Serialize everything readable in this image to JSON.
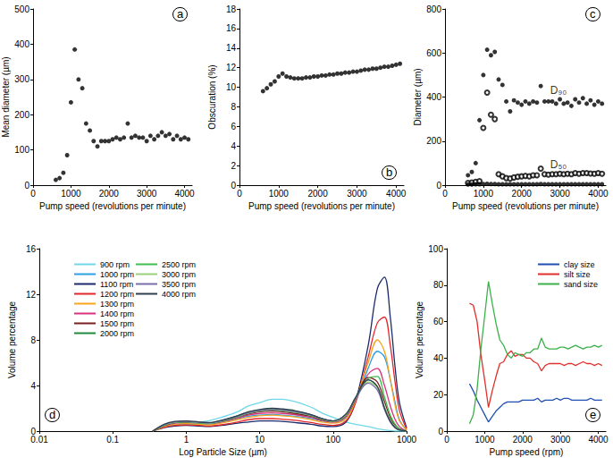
{
  "chart_data": [
    {
      "type": "scatter",
      "title": "a",
      "xlabel": "Pump speed (revolutions per minute)",
      "ylabel": "Mean diameter (µm)",
      "x": [
        600,
        700,
        800,
        900,
        1000,
        1100,
        1200,
        1300,
        1400,
        1500,
        1600,
        1700,
        1800,
        1900,
        2000,
        2100,
        2200,
        2300,
        2400,
        2500,
        2600,
        2700,
        2800,
        2900,
        3000,
        3100,
        3200,
        3300,
        3400,
        3500,
        3600,
        3700,
        3800,
        3900,
        4000,
        4100
      ],
      "series": [
        {
          "color": "#000000",
          "marker": "circle",
          "values": [
            15,
            20,
            35,
            85,
            235,
            385,
            300,
            275,
            175,
            155,
            125,
            110,
            125,
            125,
            125,
            130,
            135,
            130,
            135,
            175,
            135,
            140,
            135,
            135,
            125,
            140,
            130,
            140,
            150,
            140,
            145,
            130,
            140,
            130,
            135,
            130
          ]
        }
      ],
      "xlim": [
        0,
        4200
      ],
      "xticks": [
        0,
        1000,
        2000,
        3000,
        4000
      ],
      "ylim": [
        0,
        500
      ],
      "yticks": [
        0,
        100,
        200,
        300,
        400,
        500
      ],
      "grid": false
    },
    {
      "type": "scatter",
      "title": "b",
      "xlabel": "Pump speed (revolutions per minute)",
      "ylabel": "Obscuration (%)",
      "x": [
        600,
        700,
        800,
        900,
        1000,
        1100,
        1200,
        1300,
        1400,
        1500,
        1600,
        1700,
        1800,
        1900,
        2000,
        2100,
        2200,
        2300,
        2400,
        2500,
        2600,
        2700,
        2800,
        2900,
        3000,
        3100,
        3200,
        3300,
        3400,
        3500,
        3600,
        3700,
        3800,
        3900,
        4000,
        4100
      ],
      "series": [
        {
          "color": "#000000",
          "marker": "circle",
          "values": [
            9.6,
            9.9,
            10.3,
            10.6,
            11.1,
            11.4,
            11.1,
            11.0,
            10.9,
            10.9,
            10.9,
            11.0,
            11.0,
            11.1,
            11.1,
            11.2,
            11.2,
            11.3,
            11.3,
            11.4,
            11.4,
            11.5,
            11.5,
            11.6,
            11.6,
            11.7,
            11.8,
            11.8,
            11.9,
            11.9,
            12.0,
            12.1,
            12.1,
            12.2,
            12.3,
            12.4
          ]
        }
      ],
      "xlim": [
        0,
        4200
      ],
      "xticks": [
        0,
        1000,
        2000,
        3000,
        4000
      ],
      "ylim": [
        0,
        18
      ],
      "yticks": [
        0,
        2,
        4,
        6,
        8,
        10,
        12,
        14,
        16,
        18
      ],
      "grid": false
    },
    {
      "type": "scatter",
      "title": "c",
      "xlabel": "Pump speed (revolutions per minute)",
      "ylabel": "Diameter (µm)",
      "x": [
        600,
        700,
        800,
        900,
        1000,
        1100,
        1200,
        1300,
        1400,
        1500,
        1600,
        1700,
        1800,
        1900,
        2000,
        2100,
        2200,
        2300,
        2400,
        2500,
        2600,
        2700,
        2800,
        2900,
        3000,
        3100,
        3200,
        3300,
        3400,
        3500,
        3600,
        3700,
        3800,
        3900,
        4000,
        4100
      ],
      "series": [
        {
          "color": "#000000",
          "marker": "circle",
          "values": [
            45,
            60,
            100,
            295,
            500,
            615,
            590,
            605,
            480,
            455,
            380,
            335,
            385,
            375,
            365,
            380,
            370,
            380,
            375,
            450,
            380,
            380,
            380,
            370,
            390,
            370,
            375,
            360,
            390,
            375,
            395,
            370,
            385,
            365,
            380,
            370
          ]
        },
        {
          "color": "#000000",
          "marker": "circle-open",
          "values": [
            10,
            12,
            15,
            18,
            260,
            420,
            320,
            300,
            50,
            40,
            32,
            30,
            35,
            38,
            40,
            42,
            40,
            45,
            45,
            75,
            50,
            48,
            50,
            50,
            52,
            50,
            52,
            50,
            55,
            52,
            55,
            55,
            53,
            52,
            55,
            52
          ]
        },
        {
          "color": "#000000",
          "marker": "circle",
          "values": [
            3,
            3,
            4,
            4,
            5,
            6,
            5,
            5,
            4,
            4,
            4,
            4,
            4,
            4,
            4,
            4,
            4,
            4,
            4,
            5,
            4,
            4,
            4,
            4,
            4,
            4,
            4,
            4,
            4,
            4,
            4,
            4,
            4,
            4,
            4,
            4
          ]
        }
      ],
      "annotations": [
        {
          "text": "D₉₀",
          "x": 2750,
          "y": 430
        },
        {
          "text": "D₅₀",
          "x": 2750,
          "y": 95
        }
      ],
      "xlim": [
        0,
        4200
      ],
      "xticks": [
        0,
        1000,
        2000,
        3000,
        4000
      ],
      "ylim": [
        0,
        800
      ],
      "yticks": [
        0,
        200,
        400,
        600,
        800
      ],
      "grid": false
    },
    {
      "type": "line",
      "title": "d",
      "xlabel": "Log Particle Size (µm)",
      "ylabel": "Volume percentage",
      "log": "x",
      "legend": "upper left",
      "x": [
        0.35,
        0.5,
        0.7,
        1,
        1.5,
        2,
        3,
        5,
        7,
        10,
        15,
        20,
        30,
        50,
        70,
        100,
        150,
        200,
        300,
        400,
        500,
        600,
        700,
        800,
        1000
      ],
      "series": [
        {
          "name": "900 rpm",
          "color": "#6fd8e8",
          "values": [
            0,
            0.4,
            0.6,
            0.7,
            0.8,
            0.9,
            1.2,
            1.7,
            2.2,
            2.5,
            2.8,
            2.8,
            2.6,
            2.1,
            1.6,
            1.2,
            0.8,
            0.6,
            0.4,
            0.2,
            0.1,
            0.05,
            0,
            0,
            0
          ]
        },
        {
          "name": "1000 rpm",
          "color": "#2aa0e6",
          "values": [
            0,
            0.4,
            0.55,
            0.6,
            0.6,
            0.65,
            0.8,
            1.1,
            1.3,
            1.4,
            1.45,
            1.4,
            1.3,
            1.1,
            0.9,
            0.8,
            1.2,
            2.5,
            5.5,
            7,
            6.5,
            4.5,
            2.5,
            1.0,
            0.1
          ]
        },
        {
          "name": "1100 rpm",
          "color": "#1b2a6b",
          "values": [
            0,
            0.3,
            0.45,
            0.5,
            0.45,
            0.4,
            0.5,
            0.7,
            0.8,
            0.9,
            0.9,
            0.85,
            0.75,
            0.6,
            0.45,
            0.4,
            0.8,
            2.5,
            7.5,
            12.5,
            13.5,
            10,
            5.5,
            2.5,
            0.3
          ]
        },
        {
          "name": "1200 rpm",
          "color": "#e3262a",
          "values": [
            0,
            0.35,
            0.5,
            0.55,
            0.5,
            0.45,
            0.55,
            0.8,
            1.0,
            1.1,
            1.1,
            1.05,
            0.95,
            0.75,
            0.6,
            0.5,
            0.9,
            2.4,
            6.5,
            9.5,
            10,
            7.5,
            4.2,
            1.8,
            0.2
          ]
        },
        {
          "name": "1300 rpm",
          "color": "#f6a51e",
          "values": [
            0,
            0.4,
            0.6,
            0.65,
            0.6,
            0.55,
            0.7,
            1.0,
            1.2,
            1.35,
            1.4,
            1.35,
            1.25,
            1.0,
            0.8,
            0.7,
            1.1,
            2.6,
            6,
            8,
            7,
            4.5,
            2.2,
            0.9,
            0.1
          ]
        },
        {
          "name": "1400 rpm",
          "color": "#d8327e",
          "values": [
            0,
            0.45,
            0.7,
            0.75,
            0.7,
            0.65,
            0.8,
            1.15,
            1.4,
            1.55,
            1.6,
            1.55,
            1.45,
            1.2,
            0.95,
            0.8,
            1.3,
            2.7,
            5,
            5.5,
            4,
            2.2,
            1.0,
            0.4,
            0
          ]
        },
        {
          "name": "1500 rpm",
          "color": "#7a1f1f",
          "values": [
            0,
            0.5,
            0.75,
            0.8,
            0.75,
            0.7,
            0.85,
            1.25,
            1.5,
            1.7,
            1.75,
            1.7,
            1.55,
            1.3,
            1.0,
            0.85,
            1.4,
            2.8,
            4.7,
            4.3,
            2.6,
            1.2,
            0.5,
            0.2,
            0
          ]
        },
        {
          "name": "2000 rpm",
          "color": "#1f8a3c",
          "values": [
            0,
            0.55,
            0.8,
            0.85,
            0.75,
            0.7,
            0.9,
            1.35,
            1.65,
            1.85,
            1.95,
            1.9,
            1.75,
            1.45,
            1.1,
            0.9,
            1.5,
            2.9,
            4.5,
            3.9,
            2.1,
            0.9,
            0.35,
            0.1,
            0
          ]
        },
        {
          "name": "2500 rpm",
          "color": "#3fbf4f",
          "values": [
            0,
            0.5,
            0.75,
            0.8,
            0.7,
            0.65,
            0.85,
            1.25,
            1.55,
            1.75,
            1.85,
            1.8,
            1.65,
            1.35,
            1.05,
            0.85,
            1.4,
            2.8,
            4.6,
            4.8,
            3.0,
            1.4,
            0.6,
            0.2,
            0
          ]
        },
        {
          "name": "3000 rpm",
          "color": "#9ad07a",
          "values": [
            0,
            0.55,
            0.8,
            0.85,
            0.75,
            0.7,
            0.9,
            1.3,
            1.6,
            1.8,
            1.9,
            1.85,
            1.7,
            1.4,
            1.05,
            0.85,
            1.45,
            2.8,
            4.3,
            3.8,
            2.1,
            0.9,
            0.35,
            0.1,
            0
          ]
        },
        {
          "name": "3500 rpm",
          "color": "#7a6ea8",
          "values": [
            0,
            0.55,
            0.8,
            0.85,
            0.75,
            0.7,
            0.9,
            1.3,
            1.6,
            1.8,
            1.9,
            1.85,
            1.7,
            1.4,
            1.1,
            0.9,
            1.5,
            2.8,
            4.2,
            3.6,
            1.9,
            0.8,
            0.3,
            0.1,
            0
          ]
        },
        {
          "name": "4000 rpm",
          "color": "#2e3f52",
          "values": [
            0,
            0.6,
            0.85,
            0.9,
            0.8,
            0.75,
            0.95,
            1.35,
            1.7,
            1.9,
            2.0,
            1.95,
            1.8,
            1.45,
            1.1,
            0.9,
            1.5,
            2.9,
            4.5,
            3.9,
            2.0,
            0.85,
            0.3,
            0.1,
            0
          ]
        }
      ],
      "xlim": [
        0.01,
        1000
      ],
      "xticks": [
        0.01,
        0.1,
        1,
        10,
        100,
        1000
      ],
      "ylim": [
        0,
        16
      ],
      "yticks": [
        0,
        4,
        8,
        12,
        16
      ],
      "grid": false
    },
    {
      "type": "line",
      "title": "e",
      "xlabel": "Pump speed (rpm)",
      "ylabel": "Volume percentage",
      "legend": "upper right",
      "x": [
        600,
        700,
        800,
        900,
        1000,
        1100,
        1200,
        1300,
        1400,
        1500,
        1600,
        1700,
        1800,
        1900,
        2000,
        2100,
        2200,
        2300,
        2400,
        2500,
        2600,
        2700,
        2800,
        2900,
        3000,
        3100,
        3200,
        3300,
        3400,
        3500,
        3600,
        3700,
        3800,
        3900,
        4000,
        4100
      ],
      "series": [
        {
          "name": "clay size",
          "color": "#1f4fb0",
          "values": [
            26,
            22,
            17,
            13,
            9,
            5,
            8,
            11,
            13,
            15,
            16,
            16,
            16,
            16,
            17,
            17,
            17,
            17,
            18,
            16,
            17,
            17,
            17,
            18,
            17,
            18,
            18,
            17,
            17,
            17,
            17,
            17,
            18,
            17,
            17,
            17
          ]
        },
        {
          "name": "silt size",
          "color": "#e0302a",
          "values": [
            70,
            69,
            60,
            42,
            28,
            13,
            22,
            30,
            37,
            38,
            42,
            44,
            41,
            42,
            42,
            40,
            40,
            38,
            37,
            33,
            36,
            37,
            37,
            37,
            37,
            36,
            37,
            37,
            36,
            37,
            38,
            37,
            37,
            36,
            37,
            36
          ]
        },
        {
          "name": "sand size",
          "color": "#3cb04a",
          "values": [
            4,
            9,
            23,
            45,
            63,
            82,
            70,
            59,
            50,
            47,
            42,
            40,
            43,
            42,
            41,
            43,
            43,
            45,
            45,
            51,
            46,
            45,
            45,
            45,
            46,
            46,
            45,
            46,
            47,
            46,
            45,
            46,
            46,
            47,
            46,
            47
          ]
        }
      ],
      "xlim": [
        0,
        4200
      ],
      "xticks": [
        0,
        1000,
        2000,
        3000,
        4000
      ],
      "ylim": [
        0,
        100
      ],
      "yticks": [
        0,
        20,
        40,
        60,
        80,
        100
      ],
      "grid": false
    }
  ]
}
